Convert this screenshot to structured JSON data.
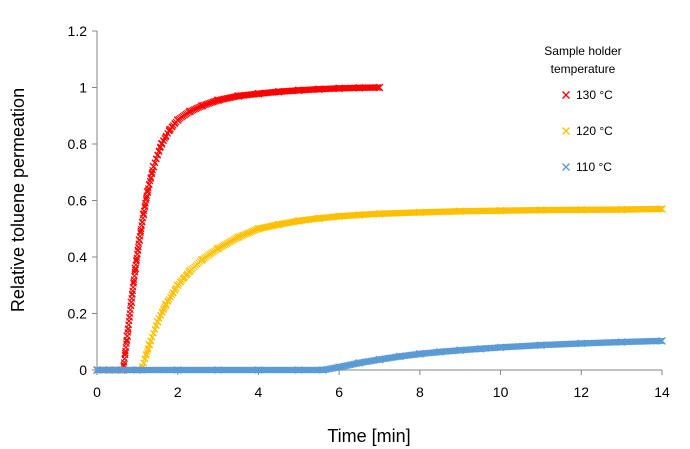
{
  "chart_data": {
    "type": "scatter",
    "title": "",
    "xlabel": "Time [min]",
    "ylabel": "Relative toluene permeation",
    "xlim": [
      0,
      14
    ],
    "ylim": [
      0,
      1.2
    ],
    "xticks": [
      0,
      2,
      4,
      6,
      8,
      10,
      12,
      14
    ],
    "yticks": [
      0,
      0.2,
      0.4,
      0.6,
      0.8,
      1,
      1.2
    ],
    "grid": false,
    "legend": {
      "title_line1": "Sample holder",
      "title_line2": "temperature",
      "position": "top-right"
    },
    "series": [
      {
        "name": "130 °C",
        "color": "#ff0000",
        "marker": "x",
        "onset_min": 0.65,
        "x": [
          0.0,
          0.3,
          0.6,
          0.65,
          0.75,
          0.85,
          0.95,
          1.05,
          1.15,
          1.25,
          1.4,
          1.6,
          1.8,
          2.0,
          2.3,
          2.6,
          3.0,
          3.5,
          4.0,
          4.5,
          5.0,
          5.5,
          6.0,
          6.5,
          7.0
        ],
        "y": [
          0.0,
          0.0,
          0.0,
          0.0,
          0.12,
          0.24,
          0.36,
          0.46,
          0.55,
          0.63,
          0.72,
          0.8,
          0.85,
          0.885,
          0.915,
          0.935,
          0.955,
          0.97,
          0.978,
          0.985,
          0.99,
          0.994,
          0.997,
          0.999,
          1.0
        ]
      },
      {
        "name": "120 °C",
        "color": "#ffc000",
        "marker": "x",
        "onset_min": 1.1,
        "x": [
          0.0,
          0.5,
          1.0,
          1.1,
          1.3,
          1.5,
          1.7,
          2.0,
          2.3,
          2.6,
          3.0,
          3.5,
          4.0,
          4.5,
          5.0,
          5.5,
          6.0,
          6.5,
          7.0,
          8.0,
          9.0,
          10.0,
          11.0,
          12.0,
          13.0,
          14.0
        ],
        "y": [
          0.0,
          0.0,
          0.0,
          0.0,
          0.09,
          0.17,
          0.23,
          0.3,
          0.35,
          0.39,
          0.43,
          0.47,
          0.5,
          0.515,
          0.528,
          0.537,
          0.544,
          0.549,
          0.553,
          0.558,
          0.562,
          0.564,
          0.566,
          0.567,
          0.568,
          0.57
        ]
      },
      {
        "name": "110 °C",
        "color": "#5b9bd5",
        "marker": "x",
        "onset_min": 5.6,
        "x": [
          0.0,
          1.0,
          2.0,
          3.0,
          4.0,
          5.0,
          5.6,
          6.0,
          6.5,
          7.0,
          7.5,
          8.0,
          8.5,
          9.0,
          9.5,
          10.0,
          11.0,
          12.0,
          13.0,
          14.0
        ],
        "y": [
          0.0,
          0.0,
          0.0,
          0.0,
          0.0,
          0.0,
          0.0,
          0.01,
          0.025,
          0.037,
          0.048,
          0.057,
          0.064,
          0.07,
          0.075,
          0.08,
          0.088,
          0.094,
          0.099,
          0.103
        ]
      }
    ]
  }
}
